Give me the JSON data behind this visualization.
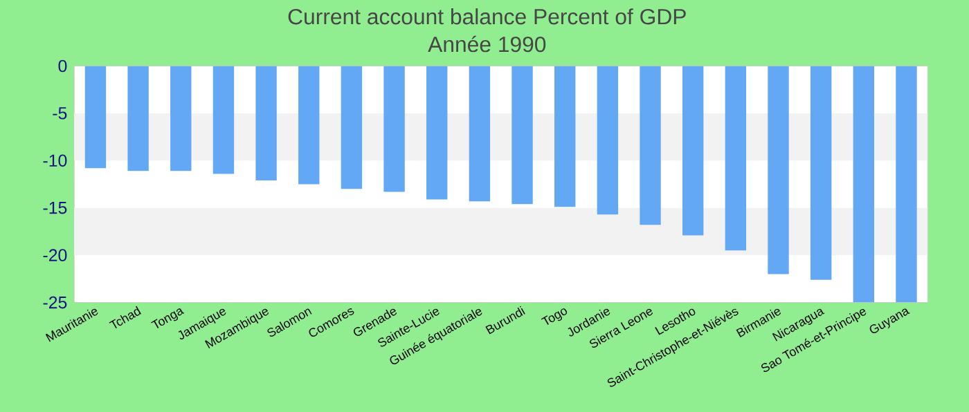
{
  "chart_data": {
    "type": "bar",
    "title": "Current account balance  Percent of GDP",
    "subtitle": "Année 1990",
    "categories": [
      "Mauritanie",
      "Tchad",
      "Tonga",
      "Jamaique",
      "Mozambique",
      "Salomon",
      "Comores",
      "Grenade",
      "Sainte-Lucie",
      "Guinée équatoriale",
      "Burundi",
      "Togo",
      "Jordanie",
      "Sierra Leone",
      "Lesotho",
      "Saint-Christophe-et-Niévès",
      "Birmanie",
      "Nicaragua",
      "Sao Tomé-et-Principe",
      "Guyana"
    ],
    "values": [
      -10.8,
      -11.1,
      -11.1,
      -11.4,
      -12.1,
      -12.5,
      -13,
      -13.3,
      -14.1,
      -14.3,
      -14.6,
      -14.9,
      -15.7,
      -16.8,
      -17.9,
      -19.5,
      -22,
      -22.6,
      -25,
      -25
    ],
    "color": "#63a8f5",
    "ylim": [
      -25,
      0
    ],
    "yticks": [
      -25,
      -20,
      -15,
      -10,
      -5,
      0
    ],
    "bands": [
      {
        "axis": "y",
        "from": -10,
        "to": -5,
        "color": "#f2f2f2"
      },
      {
        "axis": "y",
        "from": -20,
        "to": -15,
        "color": "#f2f2f2"
      }
    ]
  }
}
